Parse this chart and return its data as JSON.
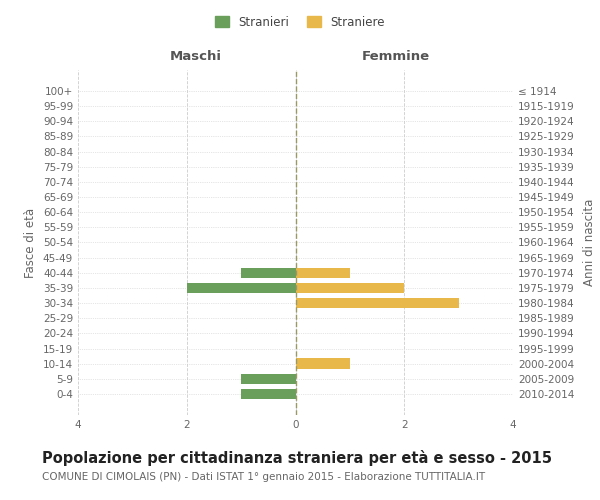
{
  "age_groups": [
    "100+",
    "95-99",
    "90-94",
    "85-89",
    "80-84",
    "75-79",
    "70-74",
    "65-69",
    "60-64",
    "55-59",
    "50-54",
    "45-49",
    "40-44",
    "35-39",
    "30-34",
    "25-29",
    "20-24",
    "15-19",
    "10-14",
    "5-9",
    "0-4"
  ],
  "birth_years": [
    "≤ 1914",
    "1915-1919",
    "1920-1924",
    "1925-1929",
    "1930-1934",
    "1935-1939",
    "1940-1944",
    "1945-1949",
    "1950-1954",
    "1955-1959",
    "1960-1964",
    "1965-1969",
    "1970-1974",
    "1975-1979",
    "1980-1984",
    "1985-1989",
    "1990-1994",
    "1995-1999",
    "2000-2004",
    "2005-2009",
    "2010-2014"
  ],
  "maschi_values": [
    0,
    0,
    0,
    0,
    0,
    0,
    0,
    0,
    0,
    0,
    0,
    0,
    -1,
    -2,
    0,
    0,
    0,
    0,
    0,
    -1,
    -1
  ],
  "femmine_values": [
    0,
    0,
    0,
    0,
    0,
    0,
    0,
    0,
    0,
    0,
    0,
    0,
    1,
    2,
    3,
    0,
    0,
    0,
    1,
    0,
    0
  ],
  "maschi_color": "#6a9e5b",
  "femmine_color": "#e8b84b",
  "xlim": [
    -4,
    4
  ],
  "xlabel_ticks": [
    -4,
    -2,
    0,
    2,
    4
  ],
  "title": "Popolazione per cittadinanza straniera per età e sesso - 2015",
  "subtitle": "COMUNE DI CIMOLAIS (PN) - Dati ISTAT 1° gennaio 2015 - Elaborazione TUTTITALIA.IT",
  "ylabel_left": "Fasce di età",
  "ylabel_right": "Anni di nascita",
  "legend_maschi": "Stranieri",
  "legend_femmine": "Straniere",
  "maschi_label": "Maschi",
  "femmine_label": "Femmine",
  "background_color": "#ffffff",
  "grid_color": "#cccccc",
  "title_fontsize": 10.5,
  "subtitle_fontsize": 7.5,
  "label_fontsize": 8.5,
  "tick_fontsize": 7.5
}
